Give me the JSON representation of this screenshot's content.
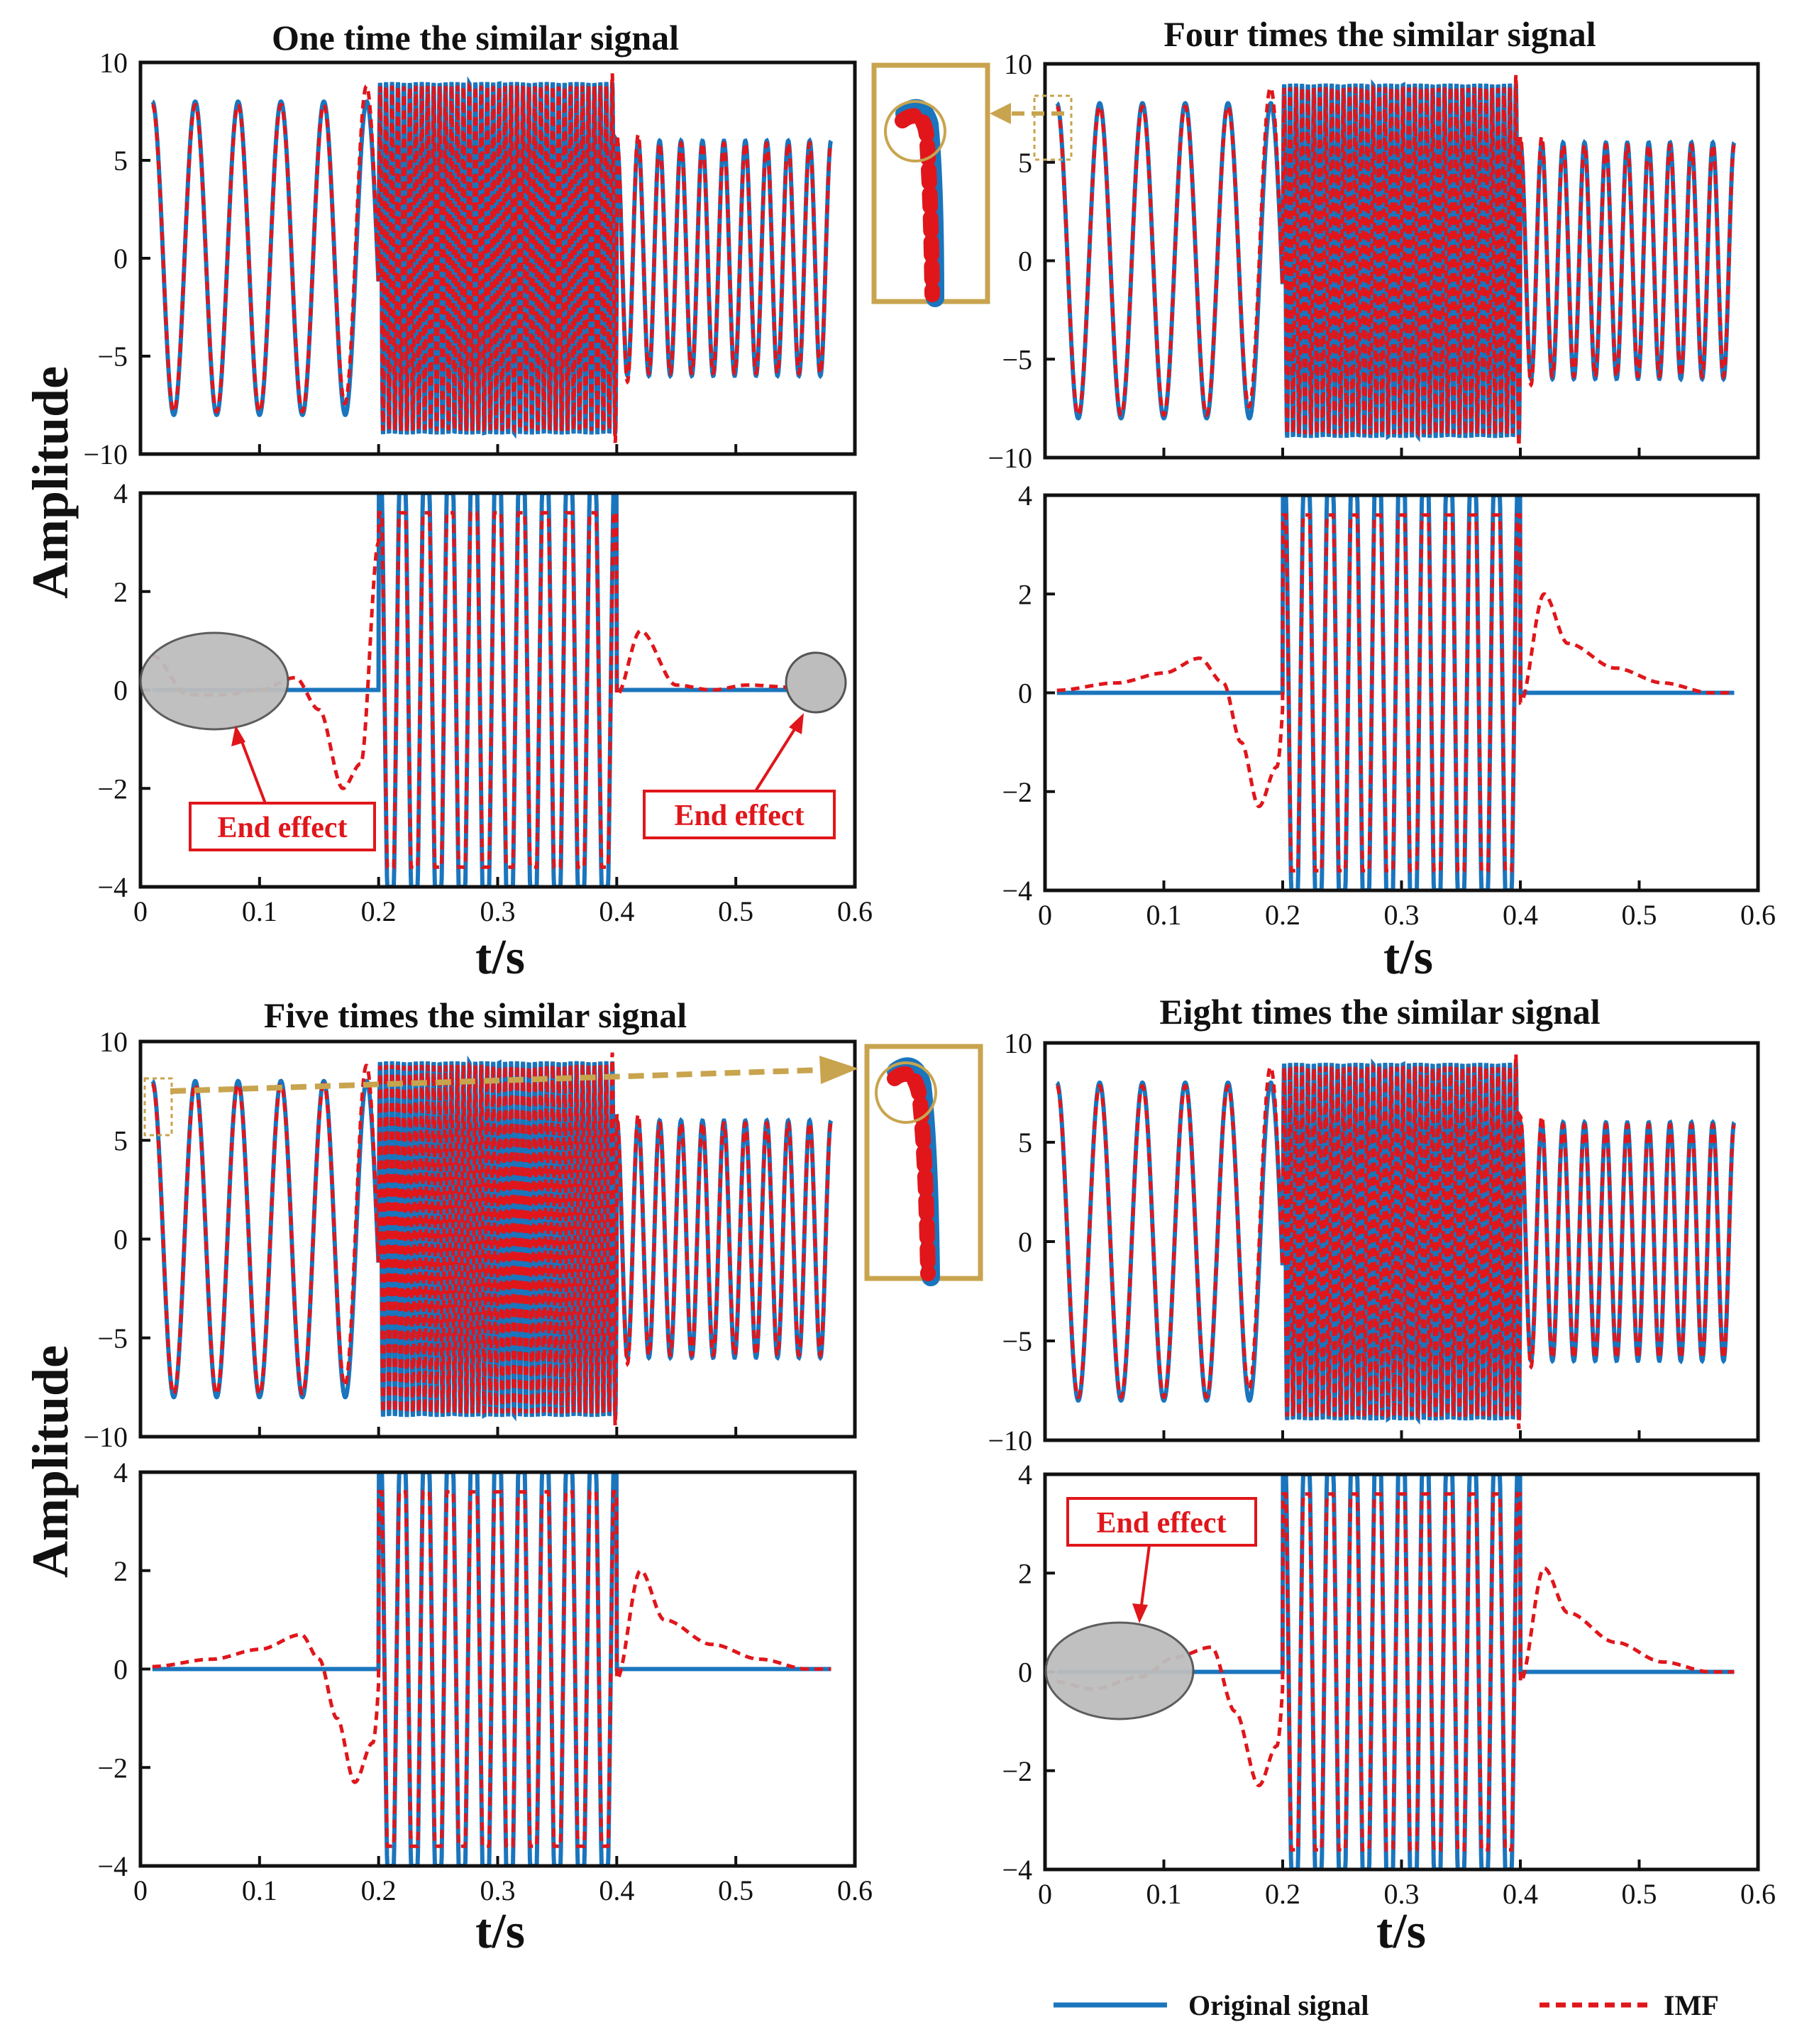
{
  "colors": {
    "original": "#1a75bd",
    "imf": "#e0161b",
    "zoom": "#c8a44e",
    "shade": "#bdbdbd"
  },
  "chart_data": {
    "type": "line",
    "xlabel": "t/s",
    "ylabel": "Amplitude",
    "xlim": [
      0,
      0.6
    ],
    "xticks": [
      "0",
      "0.1",
      "0.2",
      "0.3",
      "0.4",
      "0.5",
      "0.6"
    ],
    "panels": [
      {
        "title": "One time the similar signal",
        "top": {
          "ylim": [
            -10,
            10
          ],
          "yticks": [
            "10",
            "5",
            "0",
            "−5",
            "−10"
          ]
        },
        "bottom": {
          "ylim": [
            -4,
            4
          ],
          "yticks": [
            "4",
            "2",
            "0",
            "−2",
            "−4"
          ]
        },
        "imf_profile": [
          [
            0.01,
            0.7
          ],
          [
            0.04,
            -0.1
          ],
          [
            0.07,
            -0.1
          ],
          [
            0.1,
            0.0
          ],
          [
            0.13,
            0.25
          ],
          [
            0.15,
            -0.4
          ],
          [
            0.17,
            -2.0
          ],
          [
            0.185,
            -1.5
          ],
          [
            0.2,
            3.0
          ]
        ],
        "imf_tail": [
          [
            0.4,
            -0.1
          ],
          [
            0.42,
            1.2
          ],
          [
            0.45,
            0.1
          ],
          [
            0.48,
            0.0
          ],
          [
            0.51,
            0.1
          ],
          [
            0.55,
            0.05
          ],
          [
            0.58,
            0.1
          ]
        ],
        "end_effect_labels": [
          "End effect",
          "End effect"
        ]
      },
      {
        "title": "Four times the similar signal",
        "top": {
          "ylim": [
            -10,
            10
          ],
          "yticks": [
            "10",
            "5",
            "0",
            "−5",
            "−10"
          ]
        },
        "bottom": {
          "ylim": [
            -4,
            4
          ],
          "yticks": [
            "4",
            "2",
            "0",
            "−2",
            "−4"
          ]
        },
        "imf_profile": [
          [
            0.0,
            0.05
          ],
          [
            0.05,
            0.2
          ],
          [
            0.09,
            0.4
          ],
          [
            0.12,
            0.7
          ],
          [
            0.14,
            0.2
          ],
          [
            0.155,
            -1.0
          ],
          [
            0.17,
            -2.3
          ],
          [
            0.185,
            -1.5
          ],
          [
            0.2,
            3.2
          ]
        ],
        "imf_tail": [
          [
            0.4,
            -0.2
          ],
          [
            0.42,
            2.0
          ],
          [
            0.44,
            1.0
          ],
          [
            0.48,
            0.5
          ],
          [
            0.52,
            0.2
          ],
          [
            0.56,
            0.0
          ],
          [
            0.58,
            0.0
          ]
        ],
        "end_effect_labels": []
      },
      {
        "title": "Five times the similar signal",
        "top": {
          "ylim": [
            -10,
            10
          ],
          "yticks": [
            "10",
            "5",
            "0",
            "−5",
            "−10"
          ]
        },
        "bottom": {
          "ylim": [
            -4,
            4
          ],
          "yticks": [
            "4",
            "2",
            "0",
            "−2",
            "−4"
          ]
        },
        "imf_profile": [
          [
            0.0,
            0.05
          ],
          [
            0.05,
            0.2
          ],
          [
            0.09,
            0.4
          ],
          [
            0.125,
            0.7
          ],
          [
            0.14,
            0.2
          ],
          [
            0.155,
            -1.0
          ],
          [
            0.17,
            -2.3
          ],
          [
            0.185,
            -1.5
          ],
          [
            0.2,
            3.2
          ]
        ],
        "imf_tail": [
          [
            0.4,
            -0.2
          ],
          [
            0.42,
            2.0
          ],
          [
            0.44,
            1.0
          ],
          [
            0.48,
            0.5
          ],
          [
            0.52,
            0.2
          ],
          [
            0.56,
            0.0
          ],
          [
            0.58,
            0.0
          ]
        ],
        "end_effect_labels": []
      },
      {
        "title": "Eight times the similar signal",
        "top": {
          "ylim": [
            -10,
            10
          ],
          "yticks": [
            "10",
            "5",
            "0",
            "−5",
            "−10"
          ]
        },
        "bottom": {
          "ylim": [
            -4,
            4
          ],
          "yticks": [
            "4",
            "2",
            "0",
            "−2",
            "−4"
          ]
        },
        "imf_profile": [
          [
            0.0,
            -0.2
          ],
          [
            0.03,
            -0.35
          ],
          [
            0.07,
            -0.1
          ],
          [
            0.1,
            0.3
          ],
          [
            0.13,
            0.5
          ],
          [
            0.15,
            -0.8
          ],
          [
            0.17,
            -2.3
          ],
          [
            0.185,
            -1.5
          ],
          [
            0.2,
            3.2
          ]
        ],
        "imf_tail": [
          [
            0.4,
            -0.2
          ],
          [
            0.42,
            2.1
          ],
          [
            0.44,
            1.2
          ],
          [
            0.48,
            0.6
          ],
          [
            0.52,
            0.2
          ],
          [
            0.56,
            0.0
          ],
          [
            0.58,
            0.0
          ]
        ],
        "end_effect_labels": [
          "End effect"
        ]
      }
    ],
    "signal": {
      "segment1": {
        "t": [
          0.01,
          0.19
        ],
        "amplitude": 8,
        "cycles": 5
      },
      "segment2": {
        "t": [
          0.2,
          0.4
        ],
        "amplitude": 9,
        "cycles": 40
      },
      "segment3": {
        "t": [
          0.4,
          0.58
        ],
        "amplitude": 6,
        "cycles": 10
      },
      "bottom_burst": {
        "t": [
          0.2,
          0.4
        ],
        "amplitude": 4,
        "cycles": 10
      }
    },
    "legend": [
      {
        "name": "Original signal",
        "style": "solid"
      },
      {
        "name": "IMF",
        "style": "dashed"
      }
    ]
  }
}
